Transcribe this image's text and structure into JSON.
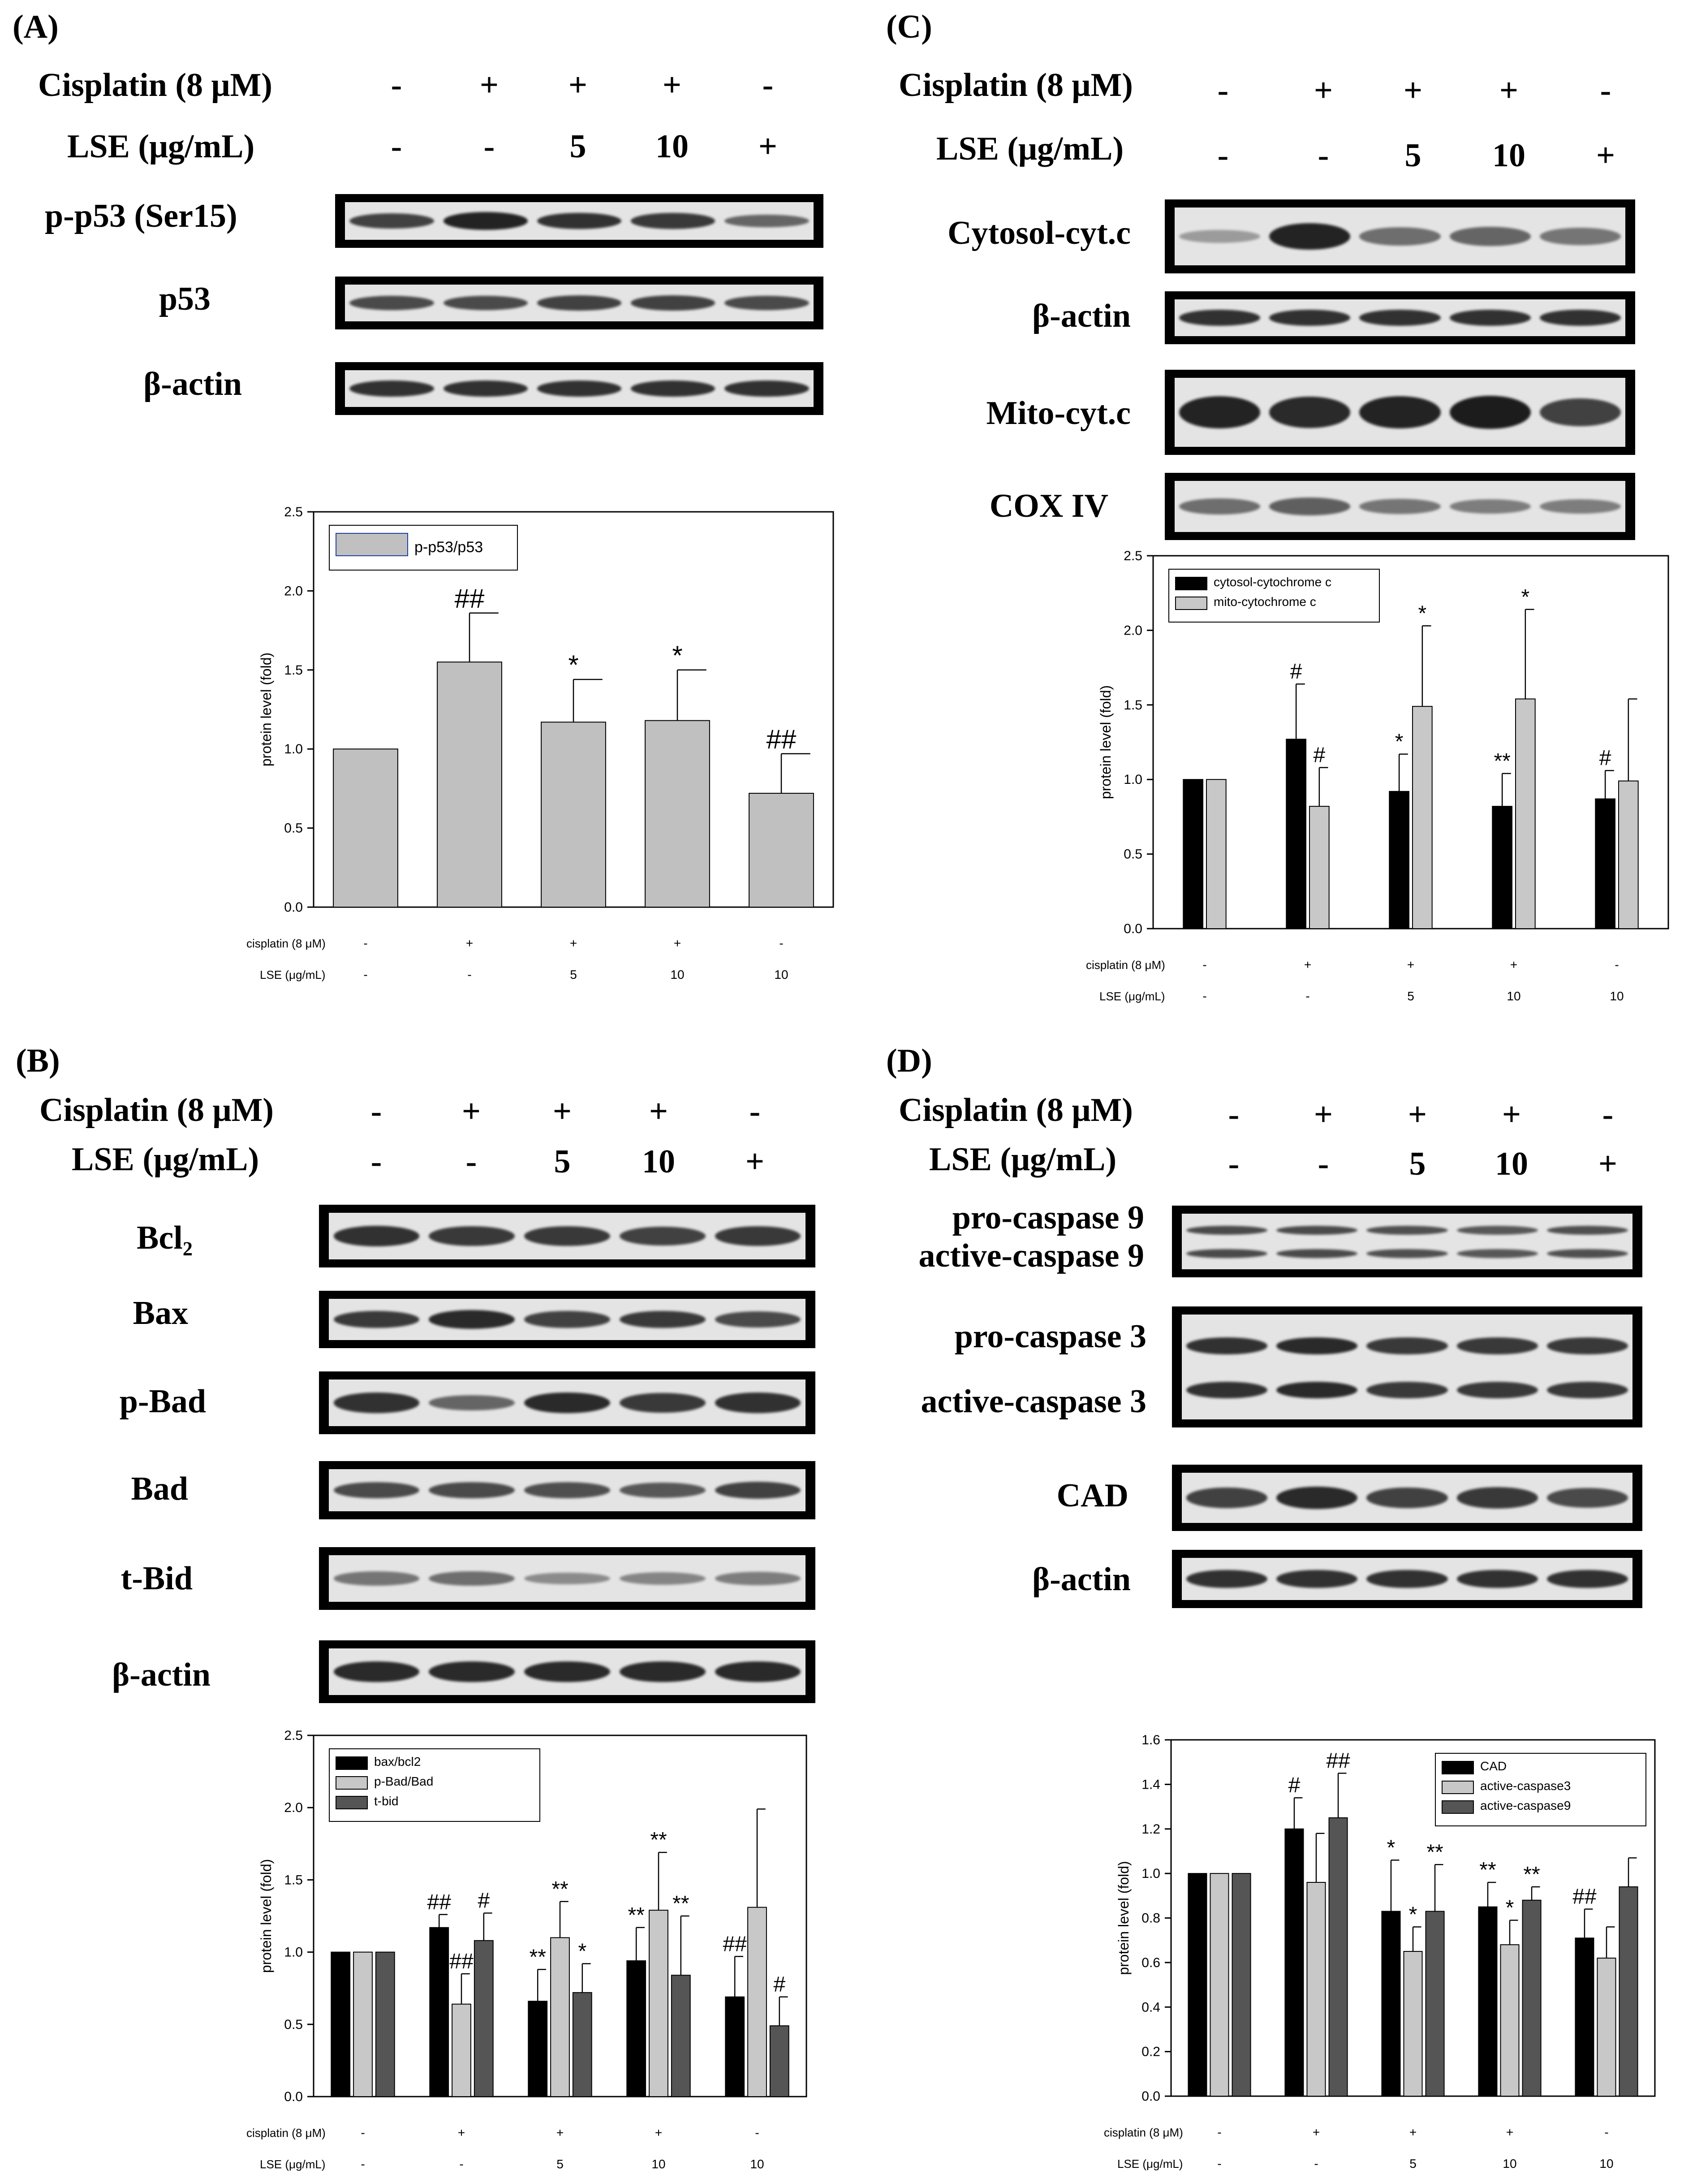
{
  "panels": [
    {
      "id": "A",
      "label": "(A)",
      "treatment_header": {
        "cisplatin_label": "Cisplatin (8 μM)",
        "cisplatin_values": [
          "-",
          "+",
          "+",
          "+",
          "-"
        ],
        "lse_label": "LSE (μg/mL)",
        "lse_values": [
          "-",
          "-",
          "5",
          "10",
          "+"
        ]
      },
      "blots": [
        {
          "label": "p-p53  (Ser15)",
          "intensities": [
            0.75,
            0.95,
            0.85,
            0.8,
            0.5
          ]
        },
        {
          "label": "p53",
          "intensities": [
            0.7,
            0.7,
            0.75,
            0.75,
            0.7
          ]
        },
        {
          "label": "β-actin",
          "intensities": [
            0.85,
            0.85,
            0.85,
            0.85,
            0.85
          ]
        }
      ]
    },
    {
      "id": "C",
      "label": "(C)",
      "treatment_header": {
        "cisplatin_label": "Cisplatin (8 μM)",
        "cisplatin_values": [
          "-",
          "+",
          "+",
          "+",
          "-"
        ],
        "lse_label": "LSE (μg/mL)",
        "lse_values": [
          "-",
          "-",
          "5",
          "10",
          "+"
        ]
      },
      "blots": [
        {
          "label": "Cytosol-cyt.c",
          "intensities": [
            0.15,
            0.95,
            0.45,
            0.5,
            0.4
          ]
        },
        {
          "label": "β-actin",
          "intensities": [
            0.85,
            0.85,
            0.85,
            0.85,
            0.85
          ]
        },
        {
          "label": "Mito-cyt.c",
          "intensities": [
            0.95,
            0.9,
            0.95,
            1.0,
            0.75
          ]
        },
        {
          "label": "COX IV",
          "intensities": [
            0.45,
            0.55,
            0.4,
            0.35,
            0.35
          ]
        }
      ]
    },
    {
      "id": "B",
      "label": "(B)",
      "treatment_header": {
        "cisplatin_label": "Cisplatin (8 μM)",
        "cisplatin_values": [
          "-",
          "+",
          "+",
          "+",
          "-"
        ],
        "lse_label": "LSE (μg/mL)",
        "lse_values": [
          "-",
          "-",
          "5",
          "10",
          "+"
        ]
      },
      "blots": [
        {
          "label": "Bcl₂",
          "intensities": [
            0.85,
            0.8,
            0.8,
            0.75,
            0.8
          ]
        },
        {
          "label": "Bax",
          "intensities": [
            0.8,
            0.9,
            0.75,
            0.8,
            0.7
          ]
        },
        {
          "label": "p-Bad",
          "intensities": [
            0.85,
            0.5,
            0.9,
            0.8,
            0.85
          ]
        },
        {
          "label": "Bad",
          "intensities": [
            0.7,
            0.7,
            0.65,
            0.6,
            0.75
          ]
        },
        {
          "label": "t-Bid",
          "intensities": [
            0.4,
            0.45,
            0.25,
            0.3,
            0.35
          ]
        },
        {
          "label": "β-actin",
          "intensities": [
            0.9,
            0.9,
            0.9,
            0.9,
            0.9
          ]
        }
      ]
    },
    {
      "id": "D",
      "label": "(D)",
      "treatment_header": {
        "cisplatin_label": "Cisplatin (8 μM)",
        "cisplatin_values": [
          "-",
          "+",
          "+",
          "+",
          "-"
        ],
        "lse_label": "LSE (μg/mL)",
        "lse_values": [
          "-",
          "-",
          "5",
          "10",
          "+"
        ]
      },
      "blots": [
        {
          "label_lines": [
            "pro-caspase 9",
            "active-caspase 9"
          ],
          "intensities": [
            0.7,
            0.7,
            0.65,
            0.6,
            0.65
          ]
        },
        {
          "label_lines": [
            "pro-caspase  3",
            "active-caspase 3"
          ],
          "intensities": [
            0.85,
            0.9,
            0.8,
            0.8,
            0.8
          ]
        },
        {
          "label": "CAD",
          "intensities": [
            0.75,
            0.9,
            0.75,
            0.8,
            0.7
          ]
        },
        {
          "label": "β-actin",
          "intensities": [
            0.85,
            0.85,
            0.85,
            0.85,
            0.85
          ]
        }
      ]
    }
  ],
  "chart_data": [
    {
      "panel": "A",
      "type": "bar",
      "ylabel": "protein level (fold)",
      "ylim": [
        0,
        2.5
      ],
      "yticks": [
        "0.0",
        "0.5",
        "1.0",
        "1.5",
        "2.0",
        "2.5"
      ],
      "row_labels": [
        "cisplatin (8 μM)",
        "LSE (μg/mL)"
      ],
      "categories_cisplatin": [
        "-",
        "+",
        "+",
        "+",
        "-"
      ],
      "categories_lse": [
        "-",
        "-",
        "5",
        "10",
        "10"
      ],
      "series": [
        {
          "name": "p-p53/p53",
          "color": "#c0c0c0",
          "values": [
            1.0,
            1.55,
            1.17,
            1.18,
            0.72
          ],
          "errors": [
            0,
            0.31,
            0.27,
            0.32,
            0.25
          ],
          "annotations": [
            "",
            "##",
            "*",
            "*",
            "##"
          ]
        }
      ],
      "legend_position": "top-left"
    },
    {
      "panel": "C",
      "type": "bar",
      "ylabel": "protein level (fold)",
      "ylim": [
        0,
        2.5
      ],
      "yticks": [
        "0.0",
        "0.5",
        "1.0",
        "1.5",
        "2.0",
        "2.5"
      ],
      "row_labels": [
        "cisplatin (8 μM)",
        "LSE (μg/mL)"
      ],
      "categories_cisplatin": [
        "-",
        "+",
        "+",
        "+",
        "-"
      ],
      "categories_lse": [
        "-",
        "-",
        "5",
        "10",
        "10"
      ],
      "series": [
        {
          "name": "cytosol-cytochrome c",
          "color": "#000000",
          "values": [
            1.0,
            1.27,
            0.92,
            0.82,
            0.87
          ],
          "errors": [
            0,
            0.37,
            0.25,
            0.22,
            0.19
          ],
          "annotations": [
            "",
            "#",
            "*",
            "**",
            "#"
          ]
        },
        {
          "name": "mito-cytochrome c",
          "color": "#c8c8c8",
          "values": [
            1.0,
            0.82,
            1.49,
            1.54,
            0.99
          ],
          "errors": [
            0,
            0.26,
            0.54,
            0.6,
            0.55
          ],
          "annotations": [
            "",
            "#",
            "*",
            "*",
            ""
          ]
        }
      ],
      "legend_position": "top-left"
    },
    {
      "panel": "B",
      "type": "bar",
      "ylabel": "protein level (fold)",
      "ylim": [
        0,
        2.5
      ],
      "yticks": [
        "0.0",
        "0.5",
        "1.0",
        "1.5",
        "2.0",
        "2.5"
      ],
      "row_labels": [
        "cisplatin (8 μM)",
        "LSE (μg/mL)"
      ],
      "categories_cisplatin": [
        "-",
        "+",
        "+",
        "+",
        "-"
      ],
      "categories_lse": [
        "-",
        "-",
        "5",
        "10",
        "10"
      ],
      "series": [
        {
          "name": "bax/bcl2",
          "color": "#000000",
          "values": [
            1.0,
            1.17,
            0.66,
            0.94,
            0.69
          ],
          "errors": [
            0,
            0.09,
            0.22,
            0.23,
            0.28
          ],
          "annotations": [
            "",
            "##",
            "**",
            "**",
            "##"
          ]
        },
        {
          "name": "p-Bad/Bad",
          "color": "#c8c8c8",
          "values": [
            1.0,
            0.64,
            1.1,
            1.29,
            1.31
          ],
          "errors": [
            0,
            0.21,
            0.25,
            0.4,
            0.68
          ],
          "annotations": [
            "",
            "##",
            "**",
            "**",
            ""
          ]
        },
        {
          "name": "t-bid",
          "color": "#555555",
          "values": [
            1.0,
            1.08,
            0.72,
            0.84,
            0.49
          ],
          "errors": [
            0,
            0.19,
            0.2,
            0.41,
            0.2
          ],
          "annotations": [
            "",
            "#",
            "*",
            "**",
            "#"
          ]
        }
      ],
      "legend_position": "top-left"
    },
    {
      "panel": "D",
      "type": "bar",
      "ylabel": "protein level (fold)",
      "ylim": [
        0,
        1.6
      ],
      "yticks": [
        "0.0",
        "0.2",
        "0.4",
        "0.6",
        "0.8",
        "1.0",
        "1.2",
        "1.4",
        "1.6"
      ],
      "row_labels": [
        "cisplatin (8 μM)",
        "LSE (μg/mL)"
      ],
      "categories_cisplatin": [
        "-",
        "+",
        "+",
        "+",
        "-"
      ],
      "categories_lse": [
        "-",
        "-",
        "5",
        "10",
        "10"
      ],
      "series": [
        {
          "name": "CAD",
          "color": "#000000",
          "values": [
            1.0,
            1.2,
            0.83,
            0.85,
            0.71
          ],
          "errors": [
            0,
            0.14,
            0.23,
            0.11,
            0.13
          ],
          "annotations": [
            "",
            "#",
            "*",
            "**",
            "##"
          ]
        },
        {
          "name": "active-caspase3",
          "color": "#c8c8c8",
          "values": [
            1.0,
            0.96,
            0.65,
            0.68,
            0.62
          ],
          "errors": [
            0,
            0.22,
            0.11,
            0.11,
            0.14
          ],
          "annotations": [
            "",
            "",
            "*",
            "*",
            ""
          ]
        },
        {
          "name": "active-caspase9",
          "color": "#555555",
          "values": [
            1.0,
            1.25,
            0.83,
            0.88,
            0.94
          ],
          "errors": [
            0,
            0.2,
            0.21,
            0.06,
            0.13
          ],
          "annotations": [
            "",
            "##",
            "**",
            "**",
            ""
          ]
        }
      ],
      "legend_position": "top-right"
    }
  ]
}
